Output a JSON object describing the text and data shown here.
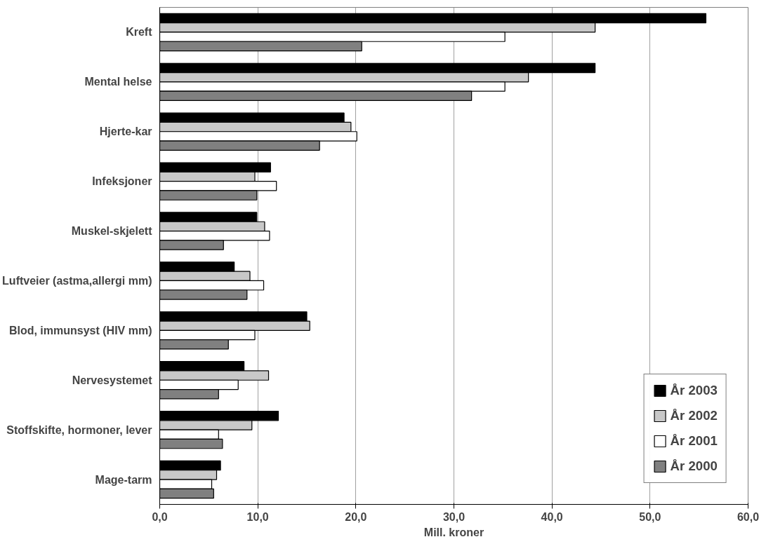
{
  "chart_data": {
    "type": "bar",
    "orientation": "horizontal",
    "xlabel": "Mill. kroner",
    "categories": [
      "Kreft",
      "Mental helse",
      "Hjerte-kar",
      "Infeksjoner",
      "Muskel-skjelett",
      "Luftveier (astma,allergi mm)",
      "Blod, immunsyst (HIV mm)",
      "Nervesystemet",
      "Stoffskifte, hormoner, lever",
      "Mage-tarm"
    ],
    "series": [
      {
        "name": "År 2003",
        "color": "#000000",
        "values": [
          55.7,
          44.4,
          18.8,
          11.3,
          9.9,
          7.6,
          15.0,
          8.6,
          12.1,
          6.2
        ]
      },
      {
        "name": "År 2002",
        "color": "#c8c8c8",
        "values": [
          44.4,
          37.6,
          19.5,
          9.7,
          10.7,
          9.2,
          15.3,
          11.1,
          9.4,
          5.8
        ]
      },
      {
        "name": "År 2001",
        "color": "#ffffff",
        "values": [
          35.2,
          35.2,
          20.1,
          11.9,
          11.2,
          10.6,
          9.7,
          8.0,
          6.0,
          5.3
        ]
      },
      {
        "name": "År 2000",
        "color": "#808080",
        "values": [
          20.6,
          31.8,
          16.3,
          9.9,
          6.5,
          8.9,
          7.0,
          6.0,
          6.4,
          5.5
        ]
      }
    ],
    "xlim": [
      0,
      60
    ],
    "xticks": [
      {
        "value": 0,
        "label": "0,0"
      },
      {
        "value": 10,
        "label": "10,0"
      },
      {
        "value": 20,
        "label": "20,0"
      },
      {
        "value": 30,
        "label": "30,0"
      },
      {
        "value": 40,
        "label": "40,0"
      },
      {
        "value": 50,
        "label": "50,0"
      },
      {
        "value": 60,
        "label": "60,0"
      }
    ],
    "grid": "x",
    "legend": "bottom right"
  }
}
